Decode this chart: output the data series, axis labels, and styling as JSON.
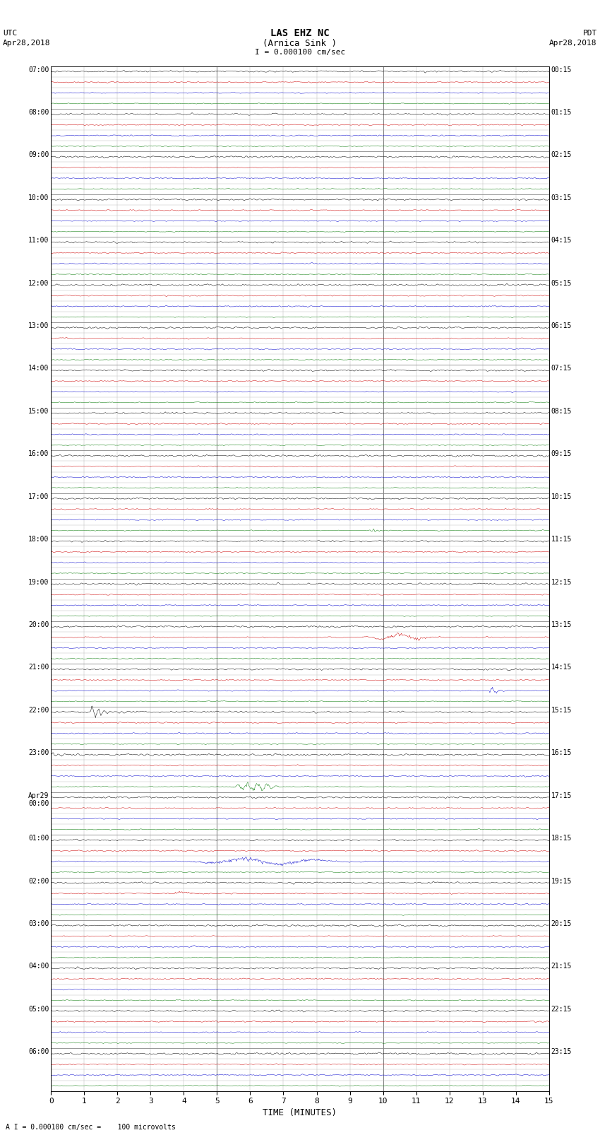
{
  "title_line1": "LAS EHZ NC",
  "title_line2": "(Arnica Sink )",
  "scale_text": "I = 0.000100 cm/sec",
  "left_label_line1": "UTC",
  "left_label_line2": "Apr28,2018",
  "right_label_line1": "PDT",
  "right_label_line2": "Apr28,2018",
  "bottom_label": "A I = 0.000100 cm/sec =    100 microvolts",
  "xlabel": "TIME (MINUTES)",
  "bg_color": "#ffffff",
  "color_black": "#000000",
  "color_red": "#cc0000",
  "color_blue": "#0000cc",
  "color_green": "#007700",
  "color_grid_major": "#888888",
  "color_grid_minor": "#bbbbbb",
  "n_hours": 24,
  "subtrace_per_hour": 4,
  "minutes_per_row": 15,
  "noise_amp_black": 0.06,
  "noise_amp_red": 0.04,
  "noise_amp_blue": 0.04,
  "noise_amp_green": 0.03,
  "utc_labels": [
    "07:00",
    "08:00",
    "09:00",
    "10:00",
    "11:00",
    "12:00",
    "13:00",
    "14:00",
    "15:00",
    "16:00",
    "17:00",
    "18:00",
    "19:00",
    "20:00",
    "21:00",
    "22:00",
    "23:00",
    "Apr29\n00:00",
    "01:00",
    "02:00",
    "03:00",
    "04:00",
    "05:00",
    "06:00"
  ],
  "pdt_labels": [
    "00:15",
    "01:15",
    "02:15",
    "03:15",
    "04:15",
    "05:15",
    "06:15",
    "07:15",
    "08:15",
    "09:15",
    "10:15",
    "11:15",
    "12:15",
    "13:15",
    "14:15",
    "15:15",
    "16:15",
    "17:15",
    "18:15",
    "19:15",
    "20:15",
    "21:15",
    "22:15",
    "23:15"
  ]
}
